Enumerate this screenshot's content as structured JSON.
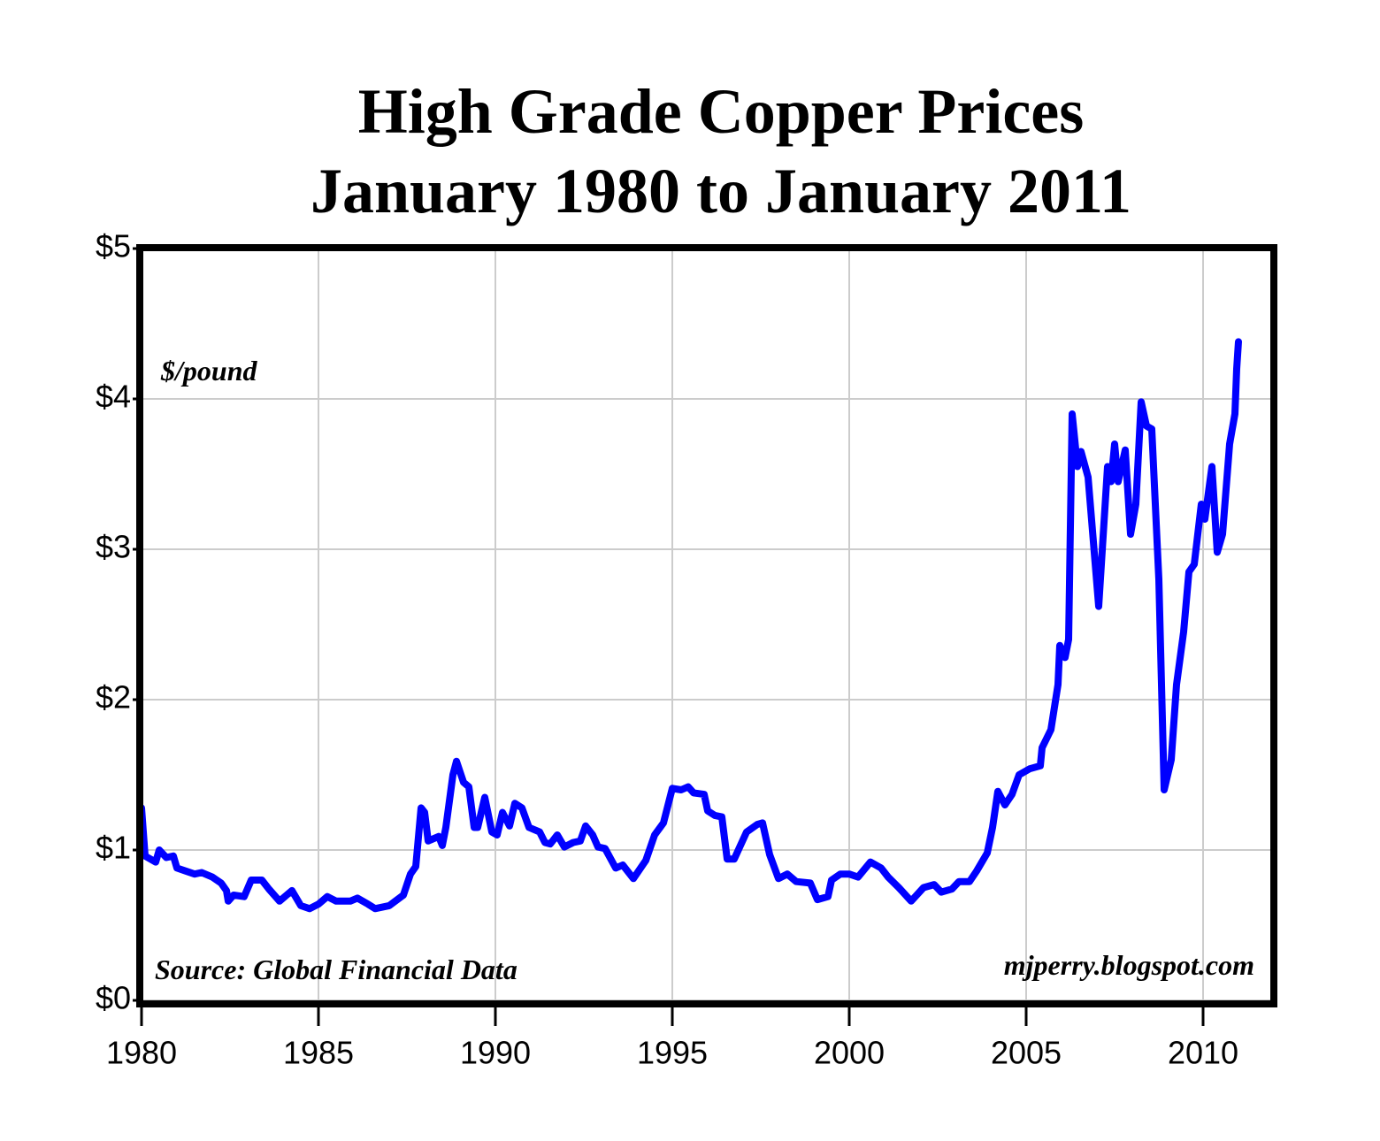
{
  "chart_data": {
    "type": "line",
    "title": "High Grade Copper Prices",
    "subtitle": "January 1980 to January 2011",
    "annotations": {
      "unit": "$/pound",
      "source": "Source: Global Financial Data",
      "credit": "mjperry.blogspot.com"
    },
    "xlim": [
      1980,
      2012
    ],
    "xticks": [
      1980,
      1985,
      1990,
      1995,
      2000,
      2005,
      2010
    ],
    "ylim": [
      0,
      5
    ],
    "yticks": [
      {
        "value": 0,
        "label": "$0"
      },
      {
        "value": 1,
        "label": "$1"
      },
      {
        "value": 2,
        "label": "$2"
      },
      {
        "value": 3,
        "label": "$3"
      },
      {
        "value": 4,
        "label": "$4"
      },
      {
        "value": 5,
        "label": "$5"
      }
    ],
    "grid": true,
    "x": [
      1980.0,
      1980.1,
      1980.4,
      1980.5,
      1980.7,
      1980.9,
      1981.0,
      1981.25,
      1981.5,
      1981.7,
      1982.0,
      1982.25,
      1982.4,
      1982.45,
      1982.6,
      1982.9,
      1983.1,
      1983.4,
      1983.6,
      1983.9,
      1984.1,
      1984.25,
      1984.5,
      1984.75,
      1985.0,
      1985.25,
      1985.5,
      1985.9,
      1986.1,
      1986.4,
      1986.6,
      1987.0,
      1987.4,
      1987.6,
      1987.75,
      1987.9,
      1988.0,
      1988.1,
      1988.4,
      1988.5,
      1988.6,
      1988.8,
      1988.9,
      1989.1,
      1989.25,
      1989.4,
      1989.5,
      1989.7,
      1989.9,
      1990.05,
      1990.2,
      1990.4,
      1990.55,
      1990.75,
      1990.95,
      1991.25,
      1991.4,
      1991.55,
      1991.75,
      1991.95,
      1992.2,
      1992.4,
      1992.55,
      1992.75,
      1992.9,
      1993.1,
      1993.4,
      1993.6,
      1993.9,
      1994.25,
      1994.5,
      1994.75,
      1995.0,
      1995.25,
      1995.45,
      1995.6,
      1995.9,
      1996.0,
      1996.2,
      1996.4,
      1996.55,
      1996.75,
      1997.1,
      1997.4,
      1997.55,
      1997.75,
      1998.0,
      1998.25,
      1998.5,
      1998.9,
      1999.1,
      1999.4,
      1999.5,
      1999.75,
      2000.0,
      2000.25,
      2000.6,
      2000.9,
      2001.1,
      2001.4,
      2001.75,
      2002.1,
      2002.4,
      2002.6,
      2002.9,
      2003.1,
      2003.4,
      2003.6,
      2003.9,
      2004.05,
      2004.2,
      2004.4,
      2004.6,
      2004.8,
      2005.1,
      2005.4,
      2005.45,
      2005.7,
      2005.9,
      2005.95,
      2006.1,
      2006.2,
      2006.3,
      2006.45,
      2006.55,
      2006.75,
      2007.05,
      2007.3,
      2007.4,
      2007.5,
      2007.6,
      2007.8,
      2007.95,
      2008.1,
      2008.25,
      2008.4,
      2008.55,
      2008.75,
      2008.9,
      2009.1,
      2009.25,
      2009.45,
      2009.6,
      2009.75,
      2009.95,
      2010.05,
      2010.25,
      2010.4,
      2010.55,
      2010.75,
      2010.9,
      2010.95,
      2011.0
    ],
    "series": [
      {
        "name": "High Grade Copper",
        "color": "#0000ff",
        "values": [
          1.28,
          0.96,
          0.92,
          1.0,
          0.95,
          0.96,
          0.88,
          0.86,
          0.84,
          0.85,
          0.82,
          0.78,
          0.73,
          0.66,
          0.7,
          0.69,
          0.8,
          0.8,
          0.74,
          0.66,
          0.7,
          0.73,
          0.63,
          0.61,
          0.64,
          0.69,
          0.66,
          0.66,
          0.68,
          0.64,
          0.61,
          0.63,
          0.7,
          0.84,
          0.89,
          1.28,
          1.25,
          1.06,
          1.09,
          1.03,
          1.15,
          1.5,
          1.59,
          1.45,
          1.42,
          1.15,
          1.15,
          1.35,
          1.12,
          1.1,
          1.25,
          1.16,
          1.31,
          1.28,
          1.15,
          1.12,
          1.05,
          1.04,
          1.1,
          1.02,
          1.05,
          1.06,
          1.16,
          1.1,
          1.02,
          1.01,
          0.88,
          0.9,
          0.81,
          0.93,
          1.1,
          1.18,
          1.41,
          1.4,
          1.42,
          1.38,
          1.37,
          1.26,
          1.23,
          1.22,
          0.94,
          0.94,
          1.12,
          1.17,
          1.18,
          0.97,
          0.81,
          0.84,
          0.79,
          0.78,
          0.67,
          0.69,
          0.8,
          0.84,
          0.84,
          0.82,
          0.92,
          0.88,
          0.82,
          0.75,
          0.66,
          0.75,
          0.77,
          0.72,
          0.74,
          0.79,
          0.79,
          0.86,
          0.98,
          1.15,
          1.39,
          1.3,
          1.37,
          1.5,
          1.54,
          1.56,
          1.68,
          1.8,
          2.1,
          2.36,
          2.28,
          2.4,
          3.9,
          3.55,
          3.65,
          3.48,
          2.62,
          3.55,
          3.45,
          3.7,
          3.45,
          3.66,
          3.1,
          3.3,
          3.98,
          3.82,
          3.8,
          2.8,
          1.4,
          1.6,
          2.1,
          2.45,
          2.85,
          2.9,
          3.3,
          3.2,
          3.55,
          2.98,
          3.1,
          3.7,
          3.9,
          4.2,
          4.38
        ]
      }
    ]
  }
}
